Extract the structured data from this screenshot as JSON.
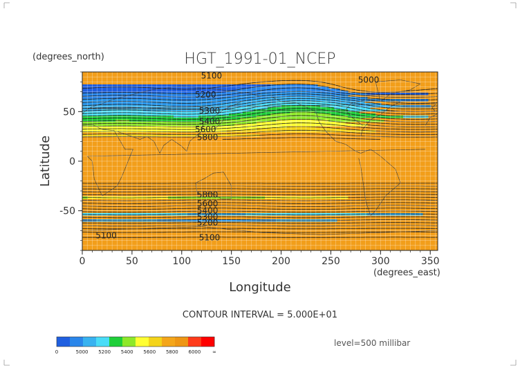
{
  "chart_data": {
    "type": "contour",
    "title": "HGT_1991-01_NCEP",
    "xlabel": "Longitude",
    "ylabel": "Latitude",
    "x_units": "(degrees_east)",
    "y_units": "(degrees_north)",
    "xlim": [
      0,
      357.5
    ],
    "ylim": [
      -90,
      90
    ],
    "x_ticks": [
      0,
      50,
      100,
      150,
      200,
      250,
      300,
      350
    ],
    "y_ticks": [
      -50,
      0,
      50
    ],
    "grid": true,
    "contour_interval_text": "CONTOUR INTERVAL = 5.000E+01",
    "level_text": "level=500 millibar",
    "contour_labels": [
      {
        "text": "5100",
        "x": 130,
        "y": 86
      },
      {
        "text": "5000",
        "x": 288,
        "y": 82
      },
      {
        "text": "5200",
        "x": 124,
        "y": 67
      },
      {
        "text": "5300",
        "x": 128,
        "y": 51
      },
      {
        "text": "5400",
        "x": 128,
        "y": 40
      },
      {
        "text": "5600",
        "x": 124,
        "y": 32
      },
      {
        "text": "5800",
        "x": 126,
        "y": 24
      },
      {
        "text": "5800",
        "x": 126,
        "y": -34
      },
      {
        "text": "5600",
        "x": 126,
        "y": -43
      },
      {
        "text": "5400",
        "x": 126,
        "y": -50
      },
      {
        "text": "5300",
        "x": 126,
        "y": -56
      },
      {
        "text": "5200",
        "x": 126,
        "y": -62
      },
      {
        "text": "5100",
        "x": 24,
        "y": -75
      },
      {
        "text": "5100",
        "x": 128,
        "y": -77
      }
    ],
    "colorbar": {
      "tick_labels": [
        "0",
        "5000",
        "5200",
        "5400",
        "5600",
        "5800",
        "6000",
        "∞"
      ],
      "colors": [
        "#1f5fe0",
        "#2a86ea",
        "#38b2f0",
        "#49dcf7",
        "#1fcf3a",
        "#8ee82a",
        "#ffff33",
        "#f4d41a",
        "#f4a61a",
        "#ee9614",
        "#ff3b1a",
        "#ff0000"
      ]
    }
  }
}
